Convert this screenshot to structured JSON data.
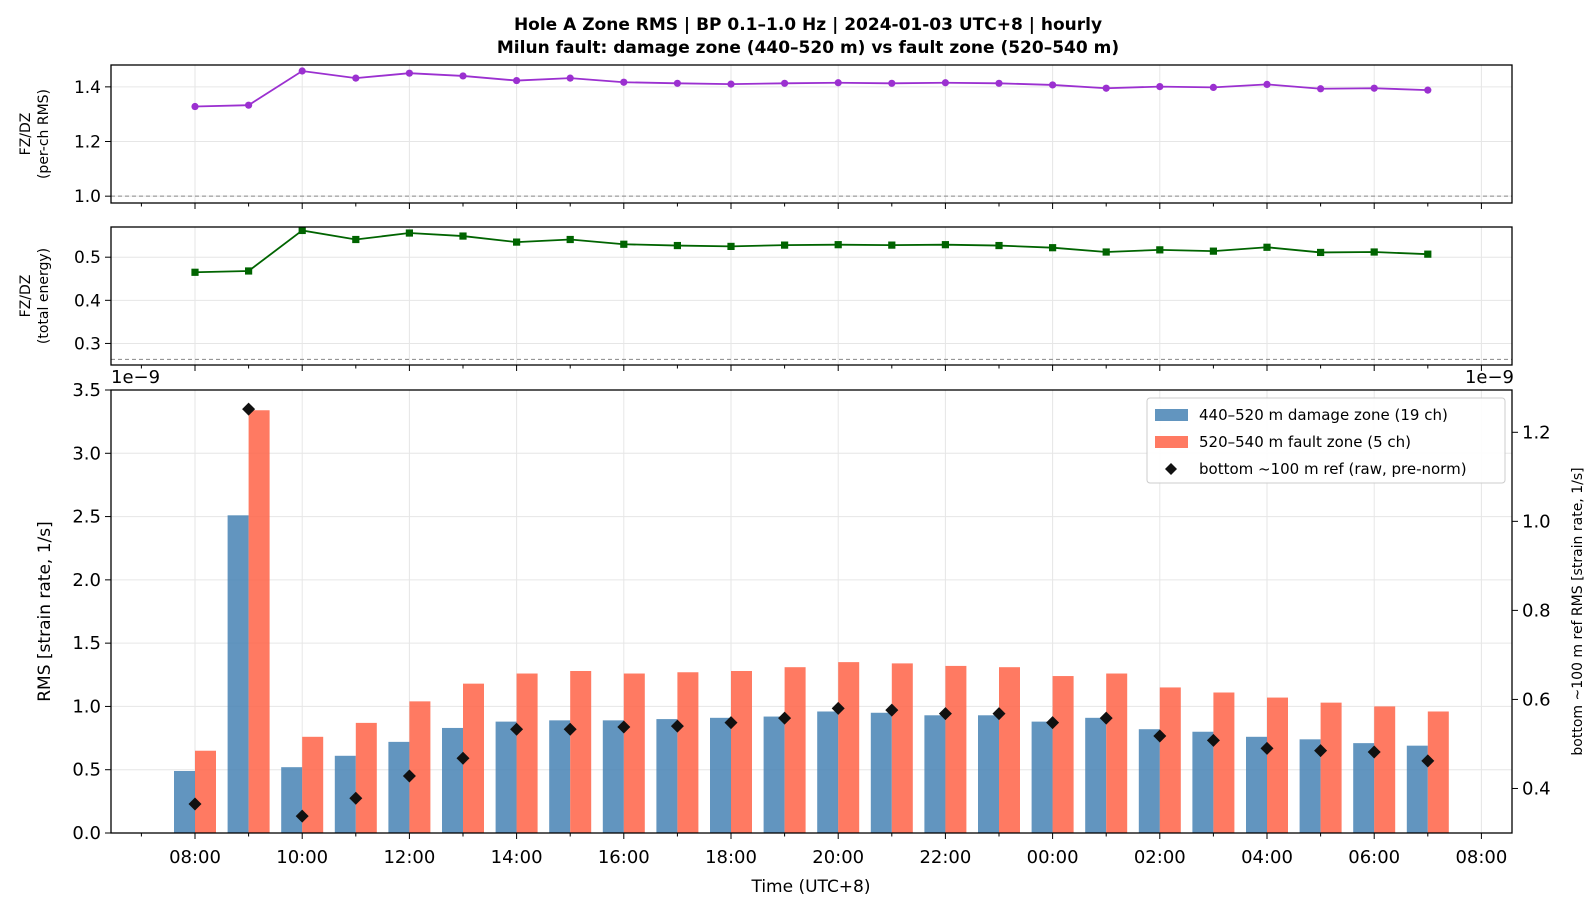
{
  "figure": {
    "title_line1": "Hole A Zone RMS  |  BP 0.1–1.0 Hz  |  2024-01-03 UTC+8  |  hourly",
    "title_line2": "Milun fault: damage zone (440–520 m) vs fault zone (520–540 m)",
    "x_label": "Time (UTC+8)",
    "x_tick_labels": [
      "08:00",
      "10:00",
      "12:00",
      "14:00",
      "16:00",
      "18:00",
      "20:00",
      "22:00",
      "00:00",
      "02:00",
      "04:00",
      "06:00",
      "08:00"
    ],
    "hours": [
      "08:00",
      "09:00",
      "10:00",
      "11:00",
      "12:00",
      "13:00",
      "14:00",
      "15:00",
      "16:00",
      "17:00",
      "18:00",
      "19:00",
      "20:00",
      "21:00",
      "22:00",
      "23:00",
      "00:00",
      "01:00",
      "02:00",
      "03:00",
      "04:00",
      "05:00",
      "06:00",
      "07:00"
    ]
  },
  "colors": {
    "ratio_rms": "#9b30d0",
    "ratio_energy": "#006400",
    "damage_zone": "#4682b4",
    "fault_zone": "#ff6347",
    "bottom_ref": "#111111"
  },
  "chart_data": [
    {
      "type": "line",
      "name": "panel-rms-ratio",
      "ylabel_line1": "FZ/DZ",
      "ylabel_line2": "(per-ch RMS)",
      "ylim": [
        0.975,
        1.48
      ],
      "y_ticks": [
        1.0,
        1.2,
        1.4
      ],
      "y_tick_labels": [
        "1.0",
        "1.2",
        "1.4"
      ],
      "reference_line": 1.0,
      "series": [
        {
          "values": [
            1.328,
            1.333,
            1.458,
            1.432,
            1.45,
            1.44,
            1.423,
            1.432,
            1.417,
            1.413,
            1.41,
            1.413,
            1.415,
            1.413,
            1.415,
            1.413,
            1.407,
            1.395,
            1.401,
            1.398,
            1.409,
            1.393,
            1.395,
            1.388
          ]
        }
      ]
    },
    {
      "type": "line",
      "name": "panel-energy-ratio",
      "ylabel_line1": "FZ/DZ",
      "ylabel_line2": "(total energy)",
      "ylim": [
        0.25,
        0.57
      ],
      "y_ticks": [
        0.3,
        0.4,
        0.5
      ],
      "y_tick_labels": [
        "0.3",
        "0.4",
        "0.5"
      ],
      "reference_line": 0.263,
      "series": [
        {
          "values": [
            0.465,
            0.468,
            0.562,
            0.541,
            0.556,
            0.549,
            0.535,
            0.541,
            0.53,
            0.527,
            0.525,
            0.528,
            0.529,
            0.528,
            0.529,
            0.527,
            0.522,
            0.512,
            0.517,
            0.514,
            0.523,
            0.511,
            0.512,
            0.507
          ]
        }
      ]
    },
    {
      "type": "bar",
      "name": "panel-zone-rms",
      "ylabel": "RMS  [strain rate, 1/s]",
      "y_offset_label": "1e−9",
      "ylim": [
        0,
        3.5
      ],
      "y_ticks": [
        0.0,
        0.5,
        1.0,
        1.5,
        2.0,
        2.5,
        3.0,
        3.5
      ],
      "y_tick_labels": [
        "0.0",
        "0.5",
        "1.0",
        "1.5",
        "2.0",
        "2.5",
        "3.0",
        "3.5"
      ],
      "y2label": "bottom ~100 m ref RMS  [strain rate, 1/s]",
      "y2_offset_label": "1e−9",
      "y2lim": [
        0.3,
        1.295
      ],
      "y2_ticks": [
        0.4,
        0.6,
        0.8,
        1.0,
        1.2
      ],
      "y2_tick_labels": [
        "0.4",
        "0.6",
        "0.8",
        "1.0",
        "1.2"
      ],
      "legend_position": "top-right",
      "series": [
        {
          "name": "440–520 m  damage zone (19 ch)",
          "axis": "left",
          "values": [
            0.49,
            2.51,
            0.52,
            0.61,
            0.72,
            0.83,
            0.88,
            0.89,
            0.89,
            0.9,
            0.91,
            0.92,
            0.96,
            0.95,
            0.93,
            0.93,
            0.88,
            0.91,
            0.82,
            0.8,
            0.76,
            0.74,
            0.71,
            0.69
          ]
        },
        {
          "name": "520–540 m  fault zone (5 ch)",
          "axis": "left",
          "values": [
            0.65,
            3.34,
            0.76,
            0.87,
            1.04,
            1.18,
            1.26,
            1.28,
            1.26,
            1.27,
            1.28,
            1.31,
            1.35,
            1.34,
            1.32,
            1.31,
            1.24,
            1.26,
            1.15,
            1.11,
            1.07,
            1.03,
            1.0,
            0.96
          ]
        },
        {
          "name": "bottom ~100 m ref (raw, pre-norm)",
          "axis": "right",
          "values": [
            0.365,
            1.252,
            0.338,
            0.378,
            0.428,
            0.468,
            0.533,
            0.533,
            0.538,
            0.54,
            0.548,
            0.558,
            0.58,
            0.576,
            0.568,
            0.568,
            0.548,
            0.558,
            0.518,
            0.508,
            0.49,
            0.485,
            0.482,
            0.462
          ]
        }
      ]
    }
  ]
}
